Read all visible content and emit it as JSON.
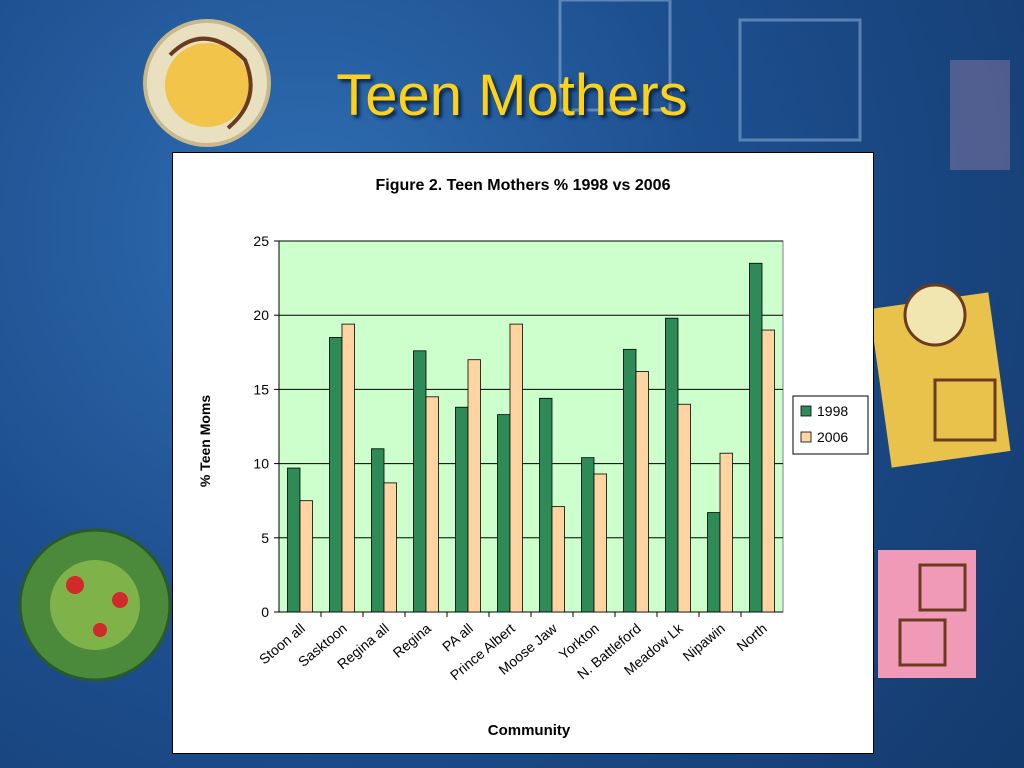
{
  "slide": {
    "title": "Teen Mothers"
  },
  "colors": {
    "series_1998": "#2e8b57",
    "series_2006": "#ffd4a3",
    "plot_bg": "#ccffcc",
    "title": "#ffd21a"
  },
  "chart_data": {
    "type": "bar",
    "title": "Figure 2.  Teen Mothers % 1998 vs 2006",
    "xlabel": "Community",
    "ylabel": "% Teen Moms",
    "ylim": [
      0,
      25
    ],
    "yticks": [
      0,
      5,
      10,
      15,
      20,
      25
    ],
    "grid": true,
    "legend": "right",
    "categories": [
      "Stoon all",
      "Sasktoon",
      "Regina all",
      "Regina",
      "PA all",
      "Prince Albert",
      "Moose Jaw",
      "Yorkton",
      "N. Battleford",
      "Meadow Lk",
      "Nipawin",
      "North"
    ],
    "series": [
      {
        "name": "1998",
        "values": [
          9.7,
          18.5,
          11.0,
          17.6,
          13.8,
          13.3,
          14.4,
          10.4,
          17.7,
          19.8,
          6.7,
          23.5
        ]
      },
      {
        "name": "2006",
        "values": [
          7.5,
          19.4,
          8.7,
          14.5,
          17.0,
          19.4,
          7.1,
          9.3,
          16.2,
          14.0,
          10.7,
          19.0
        ]
      }
    ]
  }
}
